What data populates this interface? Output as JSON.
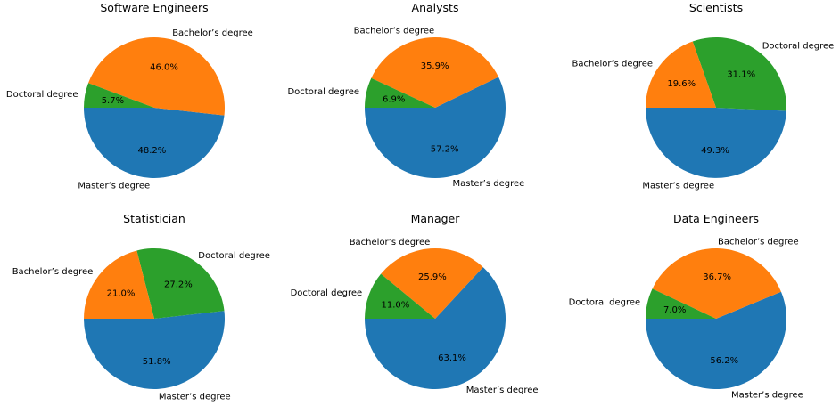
{
  "colors": {
    "Master’s degree": "#1f77b4",
    "Bachelor’s degree": "#ff7f0e",
    "Doctoral degree": "#2ca02c"
  },
  "chart_data": [
    {
      "type": "pie",
      "title": "Software Engineers",
      "slices": [
        {
          "label": "Master’s degree",
          "value": 48.2,
          "pct_label": "48.2%"
        },
        {
          "label": "Bachelor’s degree",
          "value": 46.0,
          "pct_label": "46.0%"
        },
        {
          "label": "Doctoral degree",
          "value": 5.7,
          "pct_label": "5.7%"
        }
      ]
    },
    {
      "type": "pie",
      "title": "Analysts",
      "slices": [
        {
          "label": "Master’s degree",
          "value": 57.2,
          "pct_label": "57.2%"
        },
        {
          "label": "Bachelor’s degree",
          "value": 35.9,
          "pct_label": "35.9%"
        },
        {
          "label": "Doctoral degree",
          "value": 6.9,
          "pct_label": "6.9%"
        }
      ]
    },
    {
      "type": "pie",
      "title": "Scientists",
      "slices": [
        {
          "label": "Master’s degree",
          "value": 49.3,
          "pct_label": "49.3%"
        },
        {
          "label": "Doctoral degree",
          "value": 31.1,
          "pct_label": "31.1%"
        },
        {
          "label": "Bachelor’s degree",
          "value": 19.6,
          "pct_label": "19.6%"
        }
      ]
    },
    {
      "type": "pie",
      "title": "Statistician",
      "slices": [
        {
          "label": "Master’s degree",
          "value": 51.8,
          "pct_label": "51.8%"
        },
        {
          "label": "Doctoral degree",
          "value": 27.2,
          "pct_label": "27.2%"
        },
        {
          "label": "Bachelor’s degree",
          "value": 21.0,
          "pct_label": "21.0%"
        }
      ]
    },
    {
      "type": "pie",
      "title": "Manager",
      "slices": [
        {
          "label": "Master’s degree",
          "value": 63.1,
          "pct_label": "63.1%"
        },
        {
          "label": "Bachelor’s degree",
          "value": 25.9,
          "pct_label": "25.9%"
        },
        {
          "label": "Doctoral degree",
          "value": 11.0,
          "pct_label": "11.0%"
        }
      ]
    },
    {
      "type": "pie",
      "title": "Data Engineers",
      "slices": [
        {
          "label": "Master’s degree",
          "value": 56.2,
          "pct_label": "56.2%"
        },
        {
          "label": "Bachelor’s degree",
          "value": 36.7,
          "pct_label": "36.7%"
        },
        {
          "label": "Doctoral degree",
          "value": 7.0,
          "pct_label": "7.0%"
        }
      ]
    }
  ]
}
